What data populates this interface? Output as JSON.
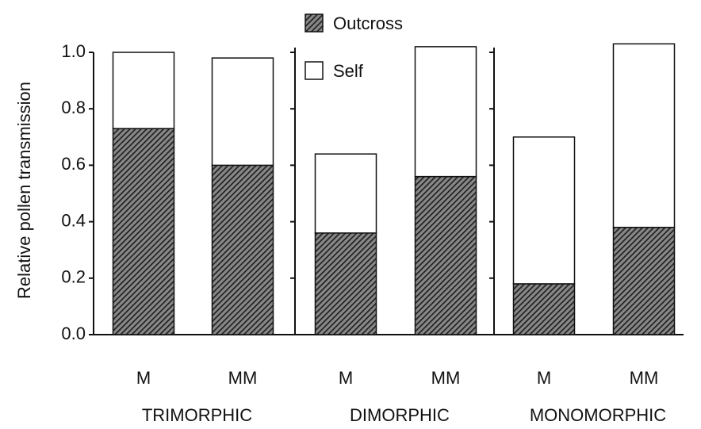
{
  "chart_data": {
    "type": "stacked_bar",
    "y_label": "Relative pollen transmission",
    "categories": [
      "M",
      "MM",
      "M",
      "MM",
      "M",
      "MM"
    ],
    "groups": [
      {
        "name": "TRIMORPHIC",
        "size": 2
      },
      {
        "name": "DIMORPHIC",
        "size": 2
      },
      {
        "name": "MONOMORPHIC",
        "size": 2
      }
    ],
    "series": [
      {
        "name": "Outcross",
        "color": "#222222",
        "hatch": true,
        "values": [
          0.73,
          0.6,
          0.36,
          0.56,
          0.18,
          0.38
        ]
      },
      {
        "name": "Self",
        "color": "#ffffff",
        "hatch": false,
        "values": [
          0.27,
          0.38,
          0.28,
          0.46,
          0.52,
          0.65
        ]
      }
    ],
    "ylim": [
      0,
      1.05
    ],
    "yticks": [
      {
        "value": 0,
        "label": "0.0"
      },
      0.2,
      0.4,
      0.6,
      0.8,
      {
        "value": 1,
        "label": "1.0"
      }
    ],
    "grid": false
  }
}
